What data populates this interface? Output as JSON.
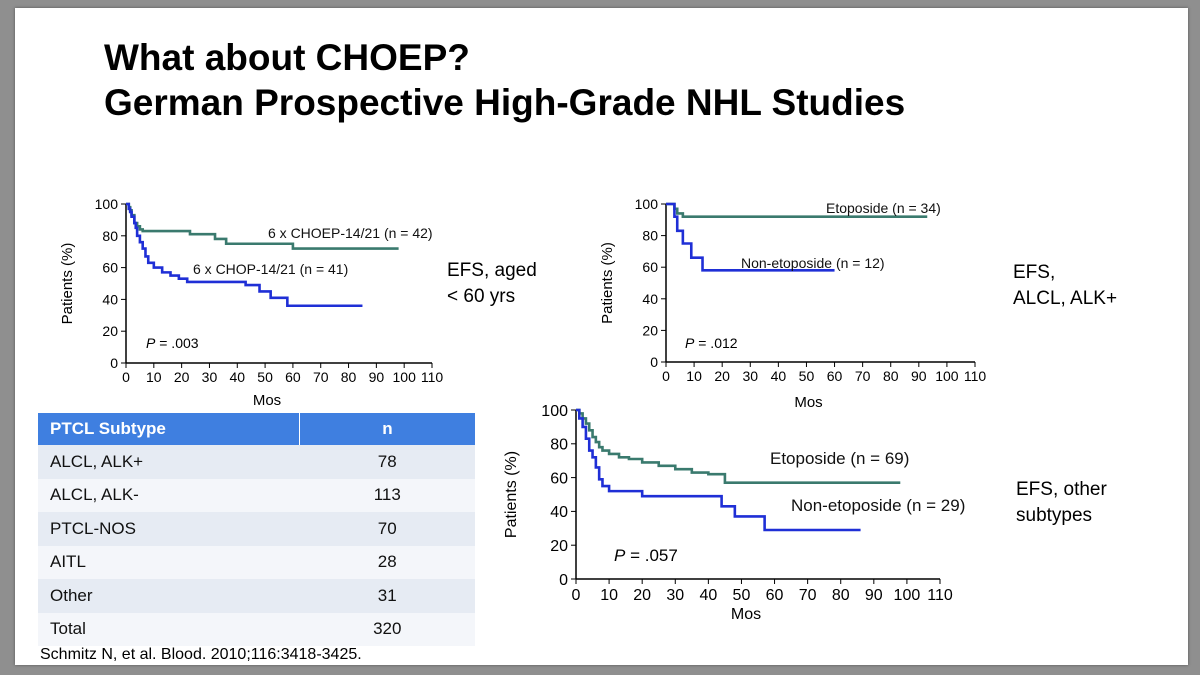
{
  "title": {
    "line1": "What about CHOEP?",
    "line2": "German Prospective High-Grade NHL Studies"
  },
  "colors": {
    "teal": "#3a7a6e",
    "blue": "#1f2fd6",
    "table_header": "#3f7fe0"
  },
  "chart_data": [
    {
      "type": "line",
      "subtype": "kaplan-meier",
      "xlabel": "Mos",
      "ylabel": "Patients (%)",
      "xlim": [
        0,
        110
      ],
      "ylim": [
        0,
        100
      ],
      "xticks": [
        "0",
        "10",
        "20",
        "30",
        "40",
        "50",
        "60",
        "70",
        "80",
        "90",
        "100",
        "110"
      ],
      "yticks": [
        "0",
        "20",
        "40",
        "60",
        "80",
        "100"
      ],
      "annotation": "P = .003",
      "side_label": [
        "EFS, aged",
        "< 60 yrs"
      ],
      "series": [
        {
          "name": "6 x CHOEP-14/21 (n = 42)",
          "color": "#3a7a6e",
          "x": [
            0,
            1,
            1.5,
            2,
            3,
            4,
            5,
            6,
            21,
            23,
            32,
            36,
            60,
            98
          ],
          "y": [
            100,
            98,
            96,
            93,
            88,
            86,
            84,
            83,
            83,
            81,
            78,
            75,
            72,
            72
          ]
        },
        {
          "name": "6 x CHOP-14/21 (n = 41)",
          "color": "#1f2fd6",
          "x": [
            0,
            1,
            1.5,
            2,
            3,
            3.5,
            4,
            5,
            6,
            7,
            8,
            10,
            13,
            16,
            19,
            22,
            43,
            48,
            52,
            58,
            85
          ],
          "y": [
            100,
            97,
            95,
            92,
            88,
            85,
            80,
            76,
            72,
            67,
            63,
            60,
            57,
            55,
            53,
            51,
            49,
            45,
            41,
            36,
            36
          ]
        }
      ]
    },
    {
      "type": "line",
      "subtype": "kaplan-meier",
      "xlabel": "Mos",
      "ylabel": "Patients (%)",
      "xlim": [
        0,
        110
      ],
      "ylim": [
        0,
        100
      ],
      "xticks": [
        "0",
        "10",
        "20",
        "30",
        "40",
        "50",
        "60",
        "70",
        "80",
        "90",
        "100",
        "110"
      ],
      "yticks": [
        "0",
        "20",
        "40",
        "60",
        "80",
        "100"
      ],
      "annotation": "P = .012",
      "side_label": [
        "EFS,",
        "ALCL, ALK+"
      ],
      "series": [
        {
          "name": "Etoposide (n = 34)",
          "color": "#3a7a6e",
          "x": [
            0,
            3,
            4,
            6,
            93
          ],
          "y": [
            100,
            97,
            94,
            92,
            92
          ]
        },
        {
          "name": "Non-etoposide (n = 12)",
          "color": "#1f2fd6",
          "x": [
            0,
            3,
            4,
            6,
            9,
            13,
            17,
            60
          ],
          "y": [
            100,
            92,
            83,
            75,
            66,
            58,
            58,
            58
          ]
        }
      ]
    },
    {
      "type": "line",
      "subtype": "kaplan-meier",
      "xlabel": "Mos",
      "ylabel": "Patients (%)",
      "xlim": [
        0,
        110
      ],
      "ylim": [
        0,
        100
      ],
      "xticks": [
        "0",
        "10",
        "20",
        "30",
        "40",
        "50",
        "60",
        "70",
        "80",
        "90",
        "100",
        "110"
      ],
      "yticks": [
        "0",
        "20",
        "40",
        "60",
        "80",
        "100"
      ],
      "annotation": "P = .057",
      "side_label": [
        "EFS, other",
        "subtypes"
      ],
      "series": [
        {
          "name": "Etoposide (n = 69)",
          "color": "#3a7a6e",
          "x": [
            0,
            1,
            2,
            3,
            4,
            5,
            6,
            7,
            8,
            10,
            13,
            16,
            20,
            25,
            30,
            35,
            40,
            45,
            98
          ],
          "y": [
            100,
            98,
            95,
            92,
            88,
            84,
            81,
            78,
            76,
            74,
            72,
            71,
            69,
            67,
            65,
            63,
            62,
            57,
            57
          ]
        },
        {
          "name": "Non-etoposide (n = 29)",
          "color": "#1f2fd6",
          "x": [
            0,
            1,
            2,
            3,
            4,
            5,
            6,
            7,
            8,
            10,
            20,
            44,
            48,
            57,
            86
          ],
          "y": [
            100,
            95,
            90,
            83,
            76,
            72,
            66,
            59,
            55,
            52,
            49,
            43,
            37,
            29,
            29
          ]
        }
      ]
    }
  ],
  "table": {
    "headers": [
      "PTCL Subtype",
      "n"
    ],
    "rows": [
      {
        "subtype": "ALCL, ALK+",
        "n": "78"
      },
      {
        "subtype": "ALCL, ALK-",
        "n": "113"
      },
      {
        "subtype": "PTCL-NOS",
        "n": "70"
      },
      {
        "subtype": "AITL",
        "n": "28"
      },
      {
        "subtype": "Other",
        "n": "31"
      },
      {
        "subtype": "Total",
        "n": "320"
      }
    ]
  },
  "citation": "Schmitz N, et al. Blood. 2010;116:3418-3425."
}
